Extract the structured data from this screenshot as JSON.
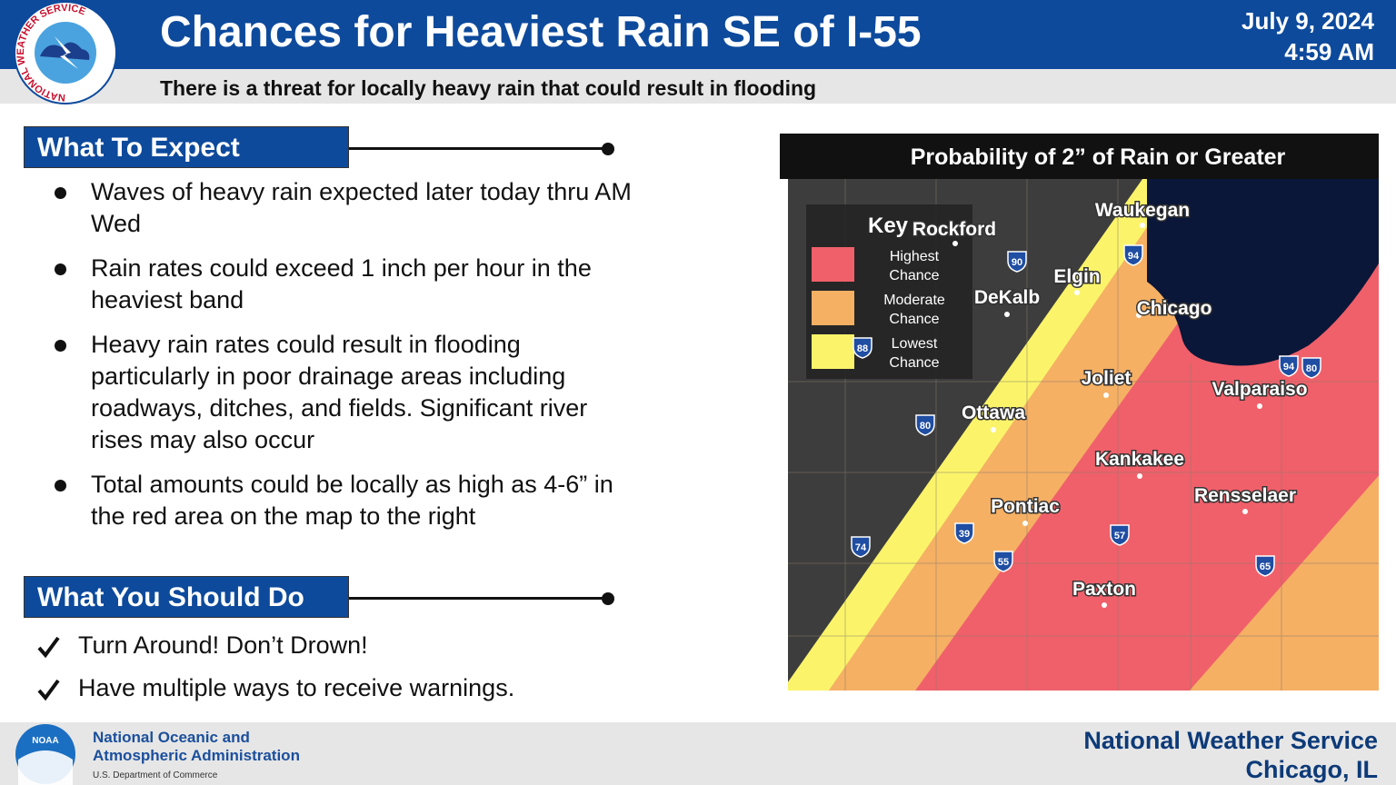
{
  "header": {
    "title": "Chances for Heaviest Rain SE of I-55",
    "subtitle": "There is a threat for locally heavy rain that could result in flooding",
    "date": "July 9, 2024",
    "time": "4:59 AM",
    "logo_text": "NATIONAL WEATHER SERVICE"
  },
  "what_to_expect": {
    "heading": "What To Expect",
    "bullets": [
      "Waves of heavy rain expected later today thru AM Wed",
      "Rain rates could exceed 1 inch per hour in the heaviest band",
      "Heavy rain rates could result in flooding particularly in poor drainage areas including roadways, ditches, and fields. Significant river rises may also occur",
      "Total amounts could be locally as high as 4-6” in the red area on the map to the right"
    ]
  },
  "what_you_should_do": {
    "heading": "What You Should Do",
    "items": [
      "Turn Around! Don’t Drown!",
      "Have multiple ways to receive warnings."
    ]
  },
  "map": {
    "title": "Probability of 2” of Rain or Greater",
    "key": {
      "title": "Key",
      "entries": [
        {
          "lines": [
            "Highest",
            "Chance"
          ],
          "color": "#f0606a"
        },
        {
          "lines": [
            "Moderate",
            "Chance"
          ],
          "color": "#f5b064"
        },
        {
          "lines": [
            "Lowest",
            "Chance"
          ],
          "color": "#fbf46a"
        }
      ]
    },
    "cities": [
      "Rockford",
      "Waukegan",
      "Elgin",
      "DeKalb",
      "Chicago",
      "Joliet",
      "Valparaiso",
      "Ottawa",
      "Kankakee",
      "Rensselaer",
      "Pontiac",
      "Paxton"
    ],
    "highways": [
      "90",
      "94",
      "88",
      "80",
      "94",
      "80",
      "39",
      "57",
      "74",
      "55",
      "65"
    ]
  },
  "footer": {
    "agency_lines": [
      "National Oceanic and",
      "Atmospheric Administration"
    ],
    "department": "U.S. Department of Commerce",
    "logo_text": "NOAA",
    "office": "National Weather Service",
    "location": "Chicago, IL"
  }
}
